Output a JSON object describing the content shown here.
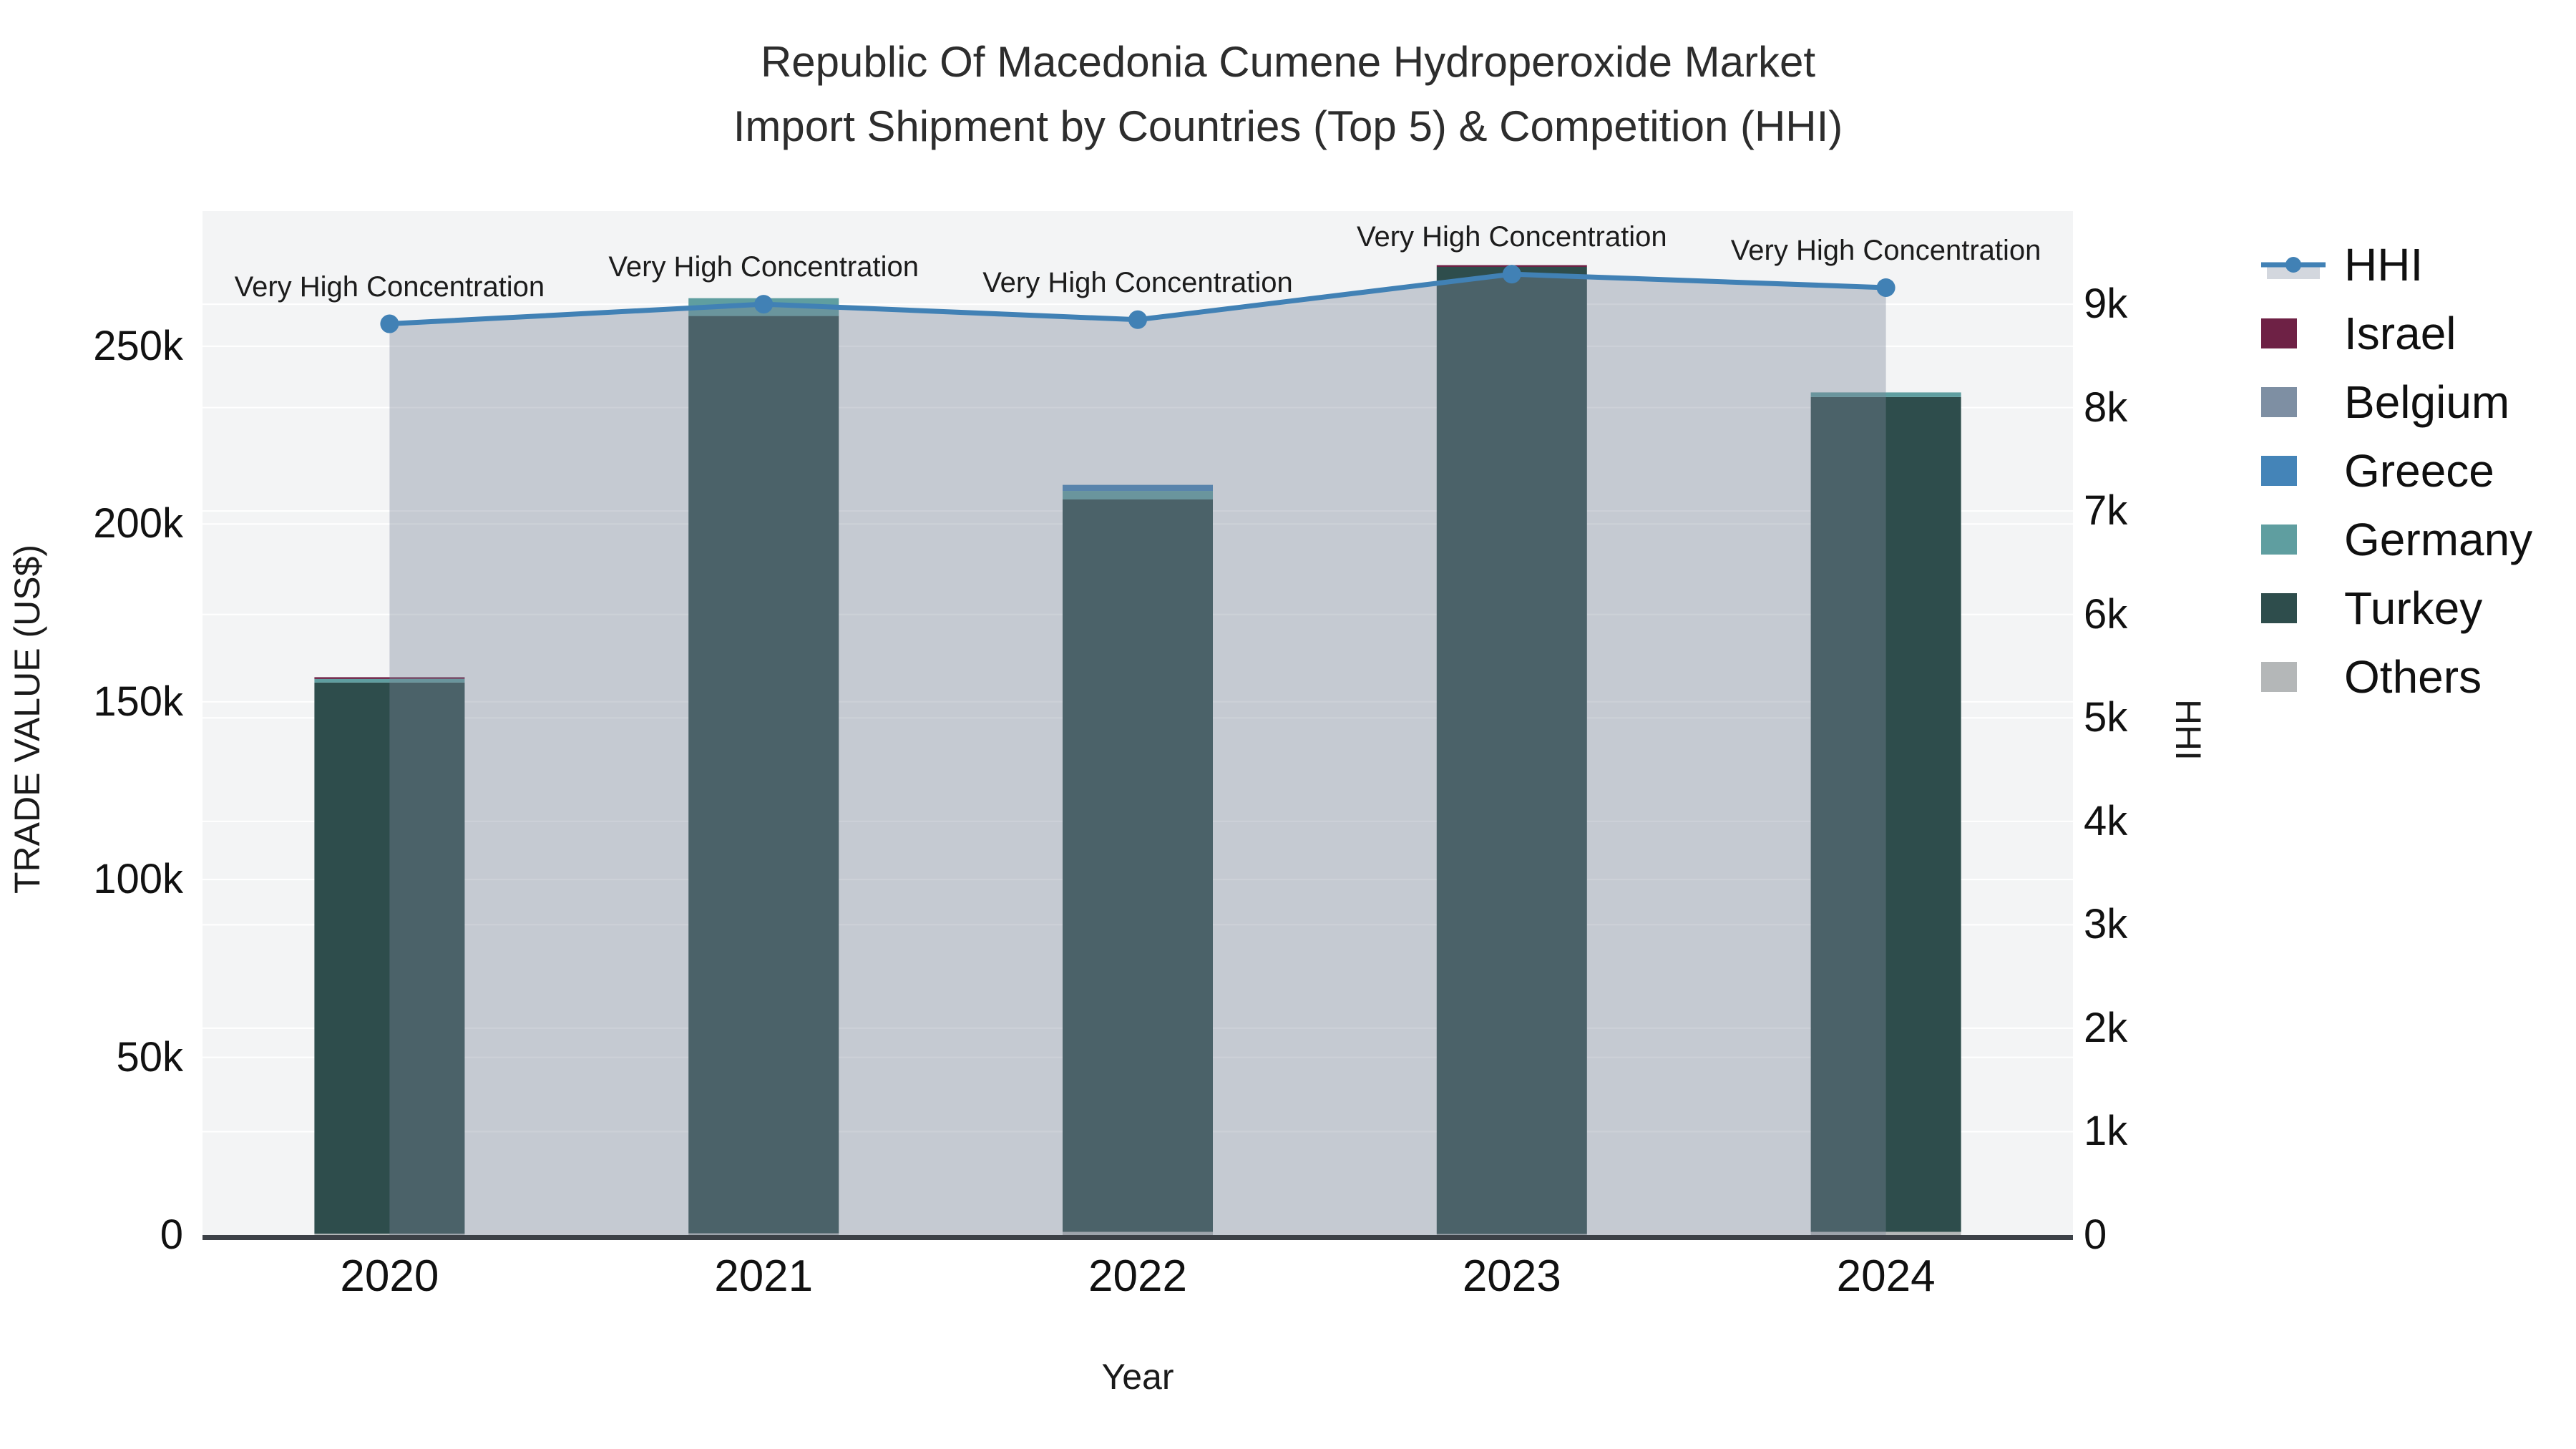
{
  "title": {
    "line1": "Republic Of Macedonia Cumene Hydroperoxide Market",
    "line2": "Import Shipment by Countries (Top 5) & Competition (HHI)"
  },
  "chart_data": {
    "type": "bar",
    "subtype": "stacked-bars-with-line-on-secondary-axis",
    "categories": [
      "2020",
      "2021",
      "2022",
      "2023",
      "2024"
    ],
    "xlabel": "Year",
    "ylabel": "TRADE VALUE (US$)",
    "y2label": "HHI",
    "ylim": [
      0,
      288000
    ],
    "y2lim": [
      0,
      9900
    ],
    "grid": true,
    "legend_position": "right",
    "plot_bg": "#f3f4f5",
    "gridline_color": "#ffffff",
    "axisline_color": "#3c4147",
    "series": [
      {
        "name": "Israel",
        "color": "#6e2145",
        "values": [
          500,
          0,
          0,
          500,
          0
        ]
      },
      {
        "name": "Belgium",
        "color": "#7e8fa3",
        "values": [
          0,
          0,
          0,
          0,
          0
        ]
      },
      {
        "name": "Greece",
        "color": "#4484b8",
        "values": [
          0,
          0,
          1700,
          0,
          0
        ]
      },
      {
        "name": "Germany",
        "color": "#5f9ea0",
        "values": [
          1000,
          5000,
          2400,
          0,
          1300
        ]
      },
      {
        "name": "Turkey",
        "color": "#2e4d4c",
        "values": [
          155000,
          258000,
          206000,
          272000,
          234800
        ]
      },
      {
        "name": "Others",
        "color": "#b4b7b8",
        "values": [
          400,
          500,
          900,
          300,
          900
        ]
      }
    ],
    "stack_order_bottom_to_top": [
      "Others",
      "Turkey",
      "Germany",
      "Greece",
      "Belgium",
      "Israel"
    ],
    "line_series": {
      "name": "HHI",
      "color": "#4181b5",
      "area_fill": "rgba(124,133,152,0.38)",
      "values": [
        8810,
        9000,
        8850,
        9290,
        9160
      ]
    },
    "yticks": [
      {
        "value": 0,
        "label": "0"
      },
      {
        "value": 50000,
        "label": "50k"
      },
      {
        "value": 100000,
        "label": "100k"
      },
      {
        "value": 150000,
        "label": "150k"
      },
      {
        "value": 200000,
        "label": "200k"
      },
      {
        "value": 250000,
        "label": "250k"
      }
    ],
    "y2ticks": [
      {
        "value": 0,
        "label": "0"
      },
      {
        "value": 1000,
        "label": "1k"
      },
      {
        "value": 2000,
        "label": "2k"
      },
      {
        "value": 3000,
        "label": "3k"
      },
      {
        "value": 4000,
        "label": "4k"
      },
      {
        "value": 5000,
        "label": "5k"
      },
      {
        "value": 6000,
        "label": "6k"
      },
      {
        "value": 7000,
        "label": "7k"
      },
      {
        "value": 8000,
        "label": "8k"
      },
      {
        "value": 9000,
        "label": "9k"
      }
    ],
    "annotations": [
      {
        "category": "2020",
        "text": "Very High Concentration"
      },
      {
        "category": "2021",
        "text": "Very High Concentration"
      },
      {
        "category": "2022",
        "text": "Very High Concentration"
      },
      {
        "category": "2023",
        "text": "Very High Concentration"
      },
      {
        "category": "2024",
        "text": "Very High Concentration"
      }
    ]
  },
  "legend": {
    "items": [
      {
        "label": "HHI",
        "type": "line",
        "color": "#4181b5"
      },
      {
        "label": "Israel",
        "type": "swatch",
        "color": "#6e2145"
      },
      {
        "label": "Belgium",
        "type": "swatch",
        "color": "#7e8fa3"
      },
      {
        "label": "Greece",
        "type": "swatch",
        "color": "#4484b8"
      },
      {
        "label": "Germany",
        "type": "swatch",
        "color": "#5f9ea0"
      },
      {
        "label": "Turkey",
        "type": "swatch",
        "color": "#2e4d4c"
      },
      {
        "label": "Others",
        "type": "swatch",
        "color": "#b4b7b8"
      }
    ]
  }
}
